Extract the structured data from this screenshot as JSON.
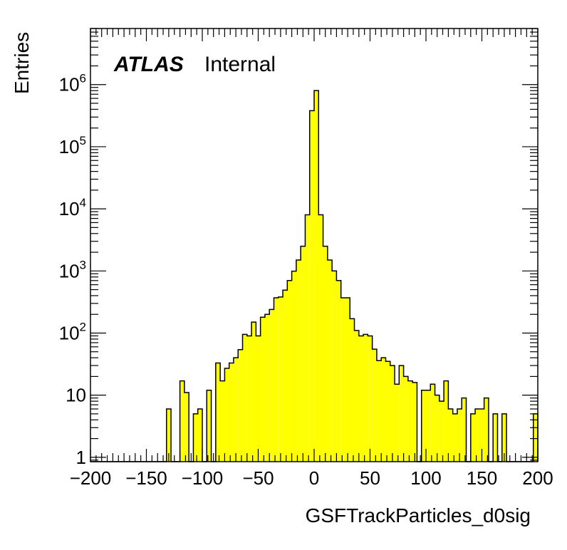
{
  "chart_data": {
    "type": "bar",
    "style": "histogram",
    "xlabel": "GSFTrackParticles_d0sig",
    "ylabel": "Entries",
    "label_bold": "ATLAS",
    "label": "Internal",
    "y_scale": "log",
    "xlim": [
      -200,
      200
    ],
    "ylim": [
      0.85,
      8000000
    ],
    "bin_width": 4,
    "fill_color": "#ffff00",
    "line_color": "#000000",
    "grid": false,
    "x_ticks": [
      {
        "value": -200,
        "label": "−200"
      },
      {
        "value": -150,
        "label": "−150"
      },
      {
        "value": -100,
        "label": "−100"
      },
      {
        "value": -50,
        "label": "−50"
      },
      {
        "value": 0,
        "label": "0"
      },
      {
        "value": 50,
        "label": "50"
      },
      {
        "value": 100,
        "label": "100"
      },
      {
        "value": 150,
        "label": "150"
      },
      {
        "value": 200,
        "label": "200"
      }
    ],
    "y_ticks": [
      {
        "value": 1,
        "base": "1",
        "exp": ""
      },
      {
        "value": 10,
        "base": "10",
        "exp": ""
      },
      {
        "value": 100,
        "base": "10",
        "exp": "2"
      },
      {
        "value": 1000,
        "base": "10",
        "exp": "3"
      },
      {
        "value": 10000,
        "base": "10",
        "exp": "4"
      },
      {
        "value": 100000,
        "base": "10",
        "exp": "5"
      },
      {
        "value": 1000000,
        "base": "10",
        "exp": "6"
      }
    ],
    "bins_low_edge": [
      -200,
      -196,
      -192,
      -188,
      -184,
      -180,
      -176,
      -172,
      -168,
      -164,
      -160,
      -156,
      -152,
      -148,
      -144,
      -140,
      -136,
      -132,
      -128,
      -124,
      -120,
      -116,
      -112,
      -108,
      -104,
      -100,
      -96,
      -92,
      -88,
      -84,
      -80,
      -76,
      -72,
      -68,
      -64,
      -60,
      -56,
      -52,
      -48,
      -44,
      -40,
      -36,
      -32,
      -28,
      -24,
      -20,
      -16,
      -12,
      -8,
      -4,
      0,
      4,
      8,
      12,
      16,
      20,
      24,
      28,
      32,
      36,
      40,
      44,
      48,
      52,
      56,
      60,
      64,
      68,
      72,
      76,
      80,
      84,
      88,
      92,
      96,
      100,
      104,
      108,
      112,
      116,
      120,
      124,
      128,
      132,
      136,
      140,
      144,
      148,
      152,
      156,
      160,
      164,
      168,
      172,
      176,
      180,
      184,
      188,
      192,
      196
    ],
    "values": [
      0,
      0,
      0,
      0,
      0,
      0,
      0,
      0,
      0,
      0,
      0,
      0,
      0,
      0,
      0,
      0,
      0,
      6,
      0,
      0,
      17,
      11,
      0,
      5,
      6,
      0,
      12,
      0,
      33,
      17,
      27,
      33,
      40,
      54,
      95,
      90,
      150,
      90,
      180,
      200,
      240,
      370,
      380,
      490,
      700,
      990,
      1500,
      2500,
      8000,
      380000,
      800000,
      8000,
      2500,
      1500,
      1000,
      700,
      370,
      370,
      170,
      110,
      90,
      95,
      90,
      55,
      36,
      40,
      35,
      30,
      15,
      30,
      20,
      17,
      16,
      0,
      12,
      12,
      15,
      10,
      8,
      17,
      6,
      5,
      6,
      9,
      0,
      5,
      6,
      6,
      9,
      0,
      5,
      0,
      5,
      0,
      0,
      0,
      0,
      0,
      0,
      5
    ]
  }
}
